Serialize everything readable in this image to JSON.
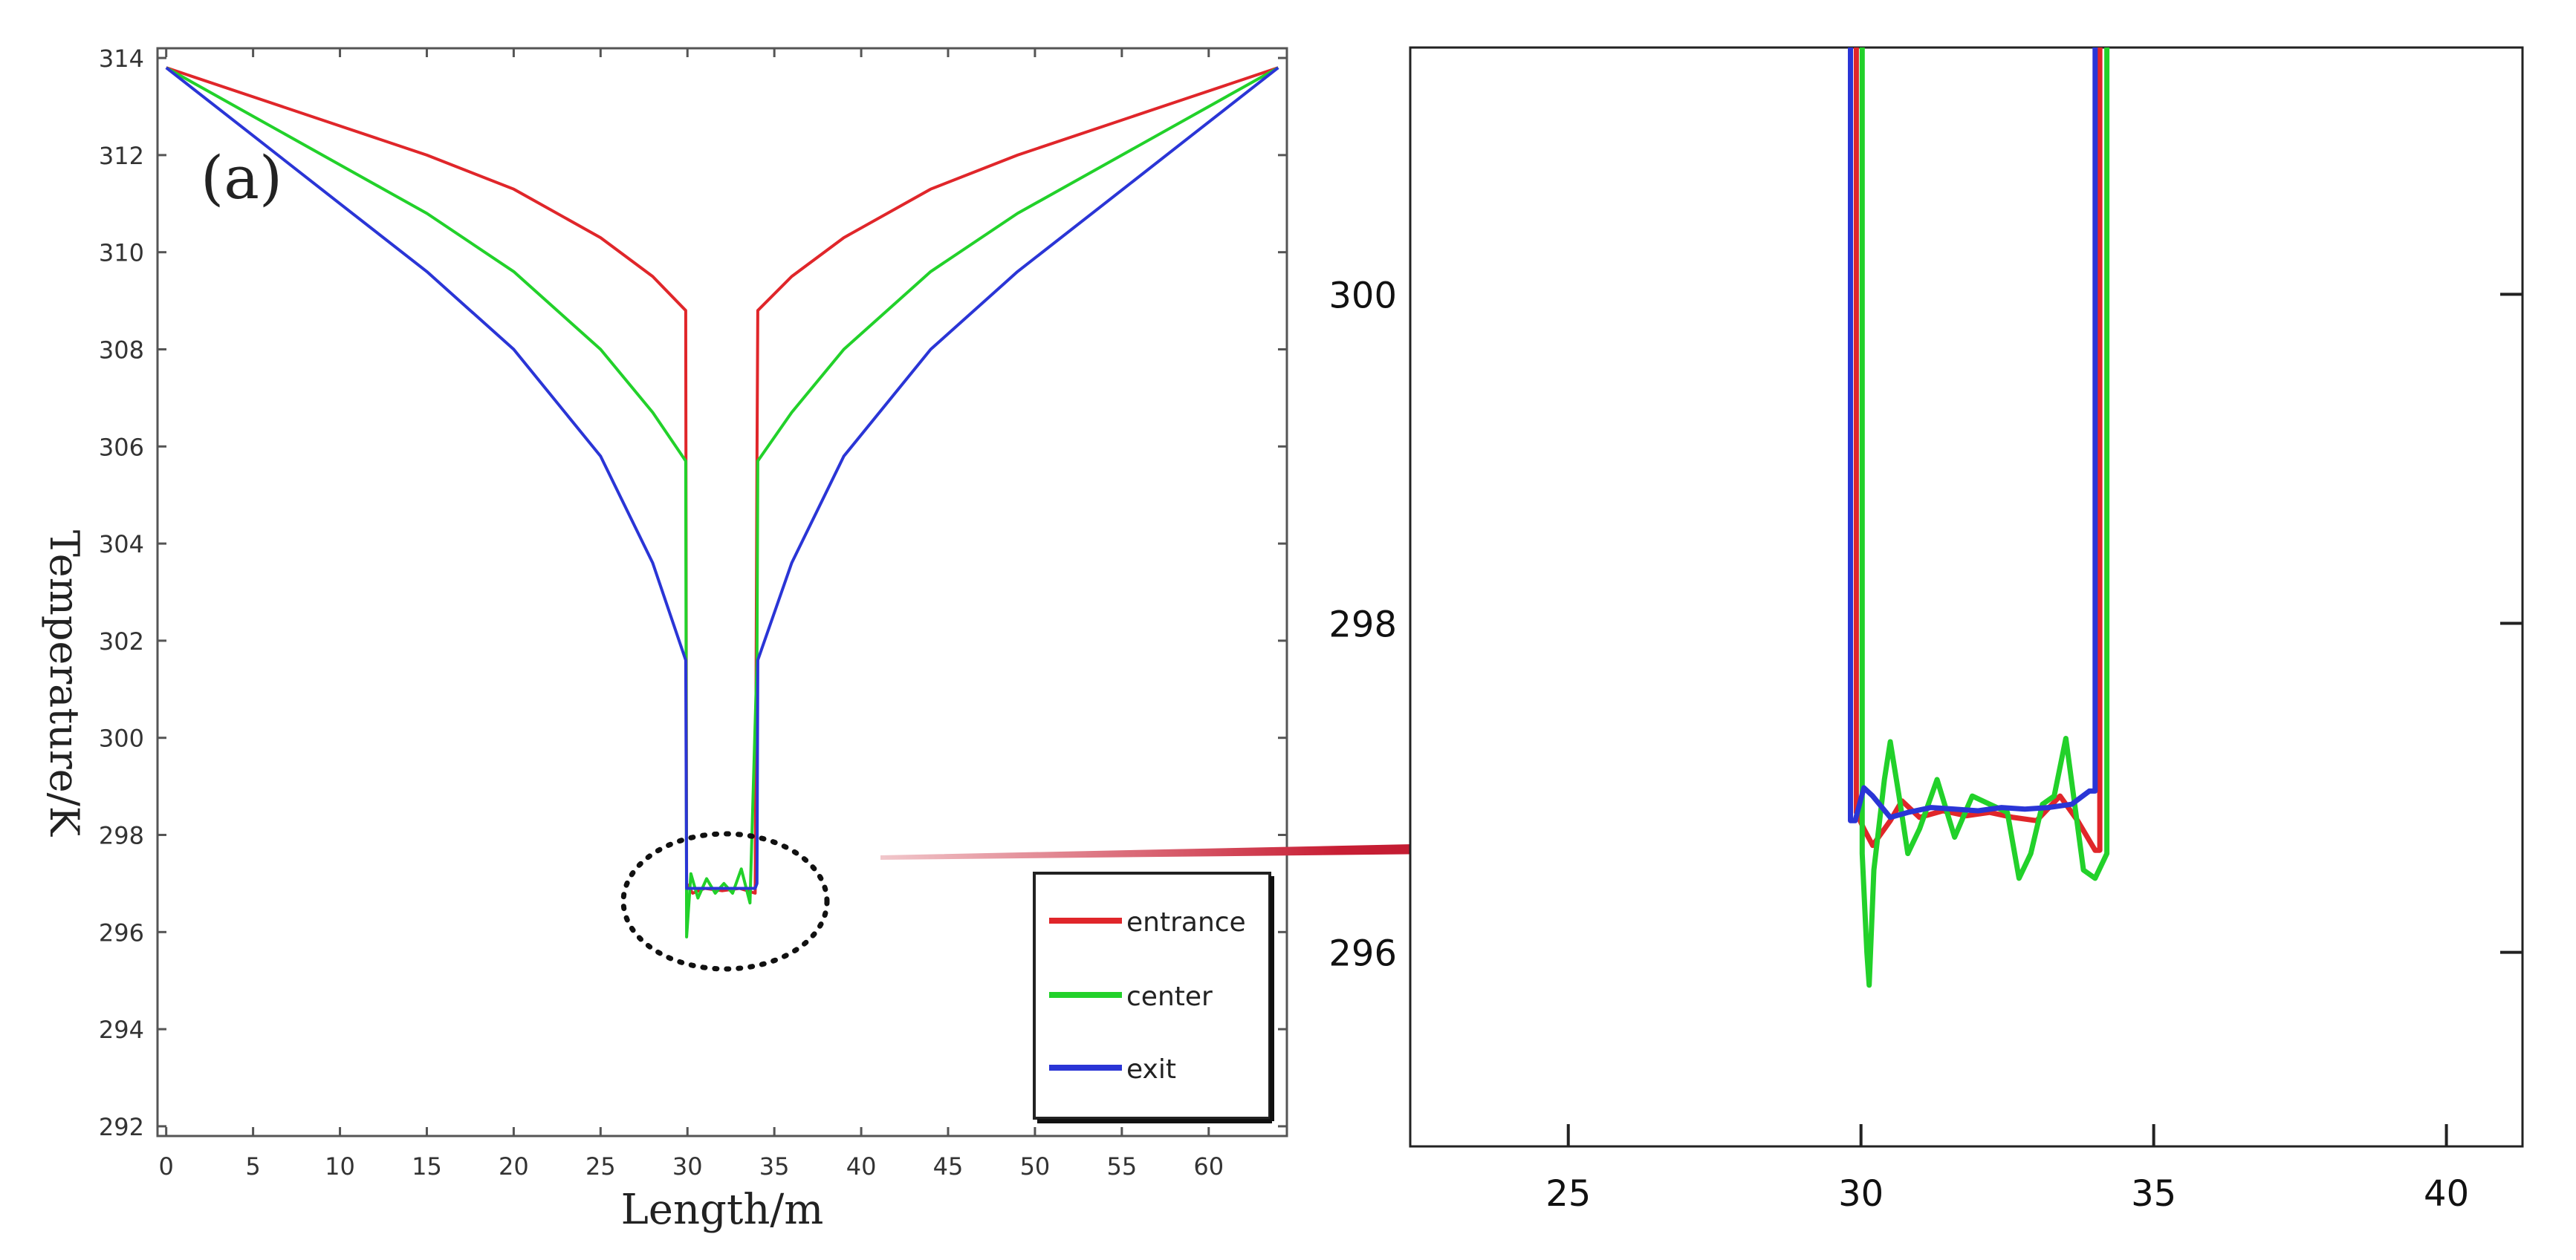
{
  "chart_data": [
    {
      "type": "line",
      "panel_label": "(a)",
      "xlabel": "Length/m",
      "ylabel": "Temperature/K",
      "xlim": [
        -0.5,
        64.5
      ],
      "ylim": [
        291.8,
        314.2
      ],
      "x_ticks": [
        "0",
        "5",
        "10",
        "15",
        "20",
        "25",
        "30",
        "35",
        "40",
        "45",
        "50",
        "55",
        "60"
      ],
      "y_ticks": [
        "292",
        "294",
        "296",
        "298",
        "300",
        "302",
        "304",
        "306",
        "308",
        "310",
        "312",
        "314"
      ],
      "legend": {
        "position": "bottom-right",
        "entries": [
          "entrance",
          "center",
          "exit"
        ]
      },
      "annotation": "dotted ellipse around 30–34 m, 295.5–298 K; arrow points to zoomed panel",
      "series": [
        {
          "name": "entrance",
          "color": "#e0262a",
          "points": [
            [
              0,
              313.8
            ],
            [
              5,
              313.2
            ],
            [
              10,
              312.6
            ],
            [
              15,
              312.0
            ],
            [
              20,
              311.3
            ],
            [
              25,
              310.3
            ],
            [
              28,
              309.5
            ],
            [
              29.9,
              308.8
            ],
            [
              29.95,
              297.0
            ],
            [
              30.3,
              296.8
            ],
            [
              31,
              296.9
            ],
            [
              32,
              296.85
            ],
            [
              33,
              296.9
            ],
            [
              33.9,
              296.8
            ],
            [
              34.0,
              305.7
            ],
            [
              34.05,
              308.8
            ],
            [
              36,
              309.5
            ],
            [
              39,
              310.3
            ],
            [
              44,
              311.3
            ],
            [
              49,
              312.0
            ],
            [
              54,
              312.6
            ],
            [
              59,
              313.2
            ],
            [
              64,
              313.8
            ]
          ]
        },
        {
          "name": "center",
          "color": "#22d12a",
          "points": [
            [
              0,
              313.8
            ],
            [
              5,
              312.8
            ],
            [
              10,
              311.8
            ],
            [
              15,
              310.8
            ],
            [
              20,
              309.6
            ],
            [
              25,
              308.0
            ],
            [
              28,
              306.7
            ],
            [
              29.9,
              305.7
            ],
            [
              29.95,
              295.9
            ],
            [
              30.2,
              297.2
            ],
            [
              30.6,
              296.7
            ],
            [
              31.1,
              297.1
            ],
            [
              31.6,
              296.8
            ],
            [
              32.1,
              297.0
            ],
            [
              32.6,
              296.8
            ],
            [
              33.1,
              297.3
            ],
            [
              33.6,
              296.6
            ],
            [
              34.0,
              301.6
            ],
            [
              34.05,
              305.7
            ],
            [
              36,
              306.7
            ],
            [
              39,
              308.0
            ],
            [
              44,
              309.6
            ],
            [
              49,
              310.8
            ],
            [
              54,
              311.8
            ],
            [
              59,
              312.8
            ],
            [
              64,
              313.8
            ]
          ]
        },
        {
          "name": "exit",
          "color": "#2a35d6",
          "points": [
            [
              0,
              313.8
            ],
            [
              5,
              312.4
            ],
            [
              10,
              311.0
            ],
            [
              15,
              309.6
            ],
            [
              20,
              308.0
            ],
            [
              25,
              305.8
            ],
            [
              28,
              303.6
            ],
            [
              29.9,
              301.6
            ],
            [
              29.95,
              296.9
            ],
            [
              31,
              296.9
            ],
            [
              32,
              296.9
            ],
            [
              33,
              296.9
            ],
            [
              33.9,
              296.9
            ],
            [
              34.0,
              297.0
            ],
            [
              34.05,
              301.6
            ],
            [
              36,
              303.6
            ],
            [
              39,
              305.8
            ],
            [
              44,
              308.0
            ],
            [
              49,
              309.6
            ],
            [
              54,
              311.0
            ],
            [
              59,
              312.4
            ],
            [
              64,
              313.8
            ]
          ]
        }
      ]
    },
    {
      "type": "line",
      "xlim": [
        22.3,
        41.3
      ],
      "ylim": [
        294.82,
        301.5
      ],
      "x_ticks": [
        "25",
        "30",
        "35",
        "40"
      ],
      "y_ticks": [
        "296",
        "298",
        "300"
      ],
      "series": [
        {
          "name": "entrance",
          "color": "#e0262a",
          "points": [
            [
              29.92,
              301.5
            ],
            [
              29.92,
              296.85
            ],
            [
              30.05,
              296.75
            ],
            [
              30.2,
              296.65
            ],
            [
              30.5,
              296.8
            ],
            [
              30.7,
              296.92
            ],
            [
              31.0,
              296.82
            ],
            [
              31.4,
              296.86
            ],
            [
              31.8,
              296.83
            ],
            [
              32.2,
              296.85
            ],
            [
              32.6,
              296.82
            ],
            [
              33.0,
              296.8
            ],
            [
              33.4,
              296.95
            ],
            [
              33.7,
              296.8
            ],
            [
              34.0,
              296.62
            ],
            [
              34.08,
              296.62
            ],
            [
              34.08,
              301.5
            ]
          ]
        },
        {
          "name": "center",
          "color": "#22d12a",
          "points": [
            [
              30.02,
              301.5
            ],
            [
              30.02,
              296.6
            ],
            [
              30.1,
              296.0
            ],
            [
              30.14,
              295.8
            ],
            [
              30.22,
              296.5
            ],
            [
              30.4,
              297.05
            ],
            [
              30.5,
              297.28
            ],
            [
              30.65,
              296.95
            ],
            [
              30.8,
              296.6
            ],
            [
              31.0,
              296.75
            ],
            [
              31.3,
              297.05
            ],
            [
              31.6,
              296.7
            ],
            [
              31.9,
              296.95
            ],
            [
              32.2,
              296.9
            ],
            [
              32.5,
              296.85
            ],
            [
              32.7,
              296.45
            ],
            [
              32.9,
              296.6
            ],
            [
              33.1,
              296.9
            ],
            [
              33.3,
              296.95
            ],
            [
              33.5,
              297.3
            ],
            [
              33.65,
              296.9
            ],
            [
              33.8,
              296.5
            ],
            [
              34.0,
              296.45
            ],
            [
              34.2,
              296.6
            ],
            [
              34.2,
              301.5
            ]
          ]
        },
        {
          "name": "exit",
          "color": "#2a35d6",
          "points": [
            [
              29.82,
              301.5
            ],
            [
              29.82,
              296.8
            ],
            [
              29.9,
              296.8
            ],
            [
              30.05,
              297.0
            ],
            [
              30.2,
              296.95
            ],
            [
              30.5,
              296.82
            ],
            [
              30.8,
              296.85
            ],
            [
              31.2,
              296.88
            ],
            [
              31.6,
              296.87
            ],
            [
              32.0,
              296.86
            ],
            [
              32.4,
              296.88
            ],
            [
              32.8,
              296.87
            ],
            [
              33.2,
              296.88
            ],
            [
              33.6,
              296.9
            ],
            [
              33.9,
              296.98
            ],
            [
              34.0,
              296.98
            ],
            [
              34.0,
              301.5
            ]
          ]
        }
      ]
    }
  ]
}
